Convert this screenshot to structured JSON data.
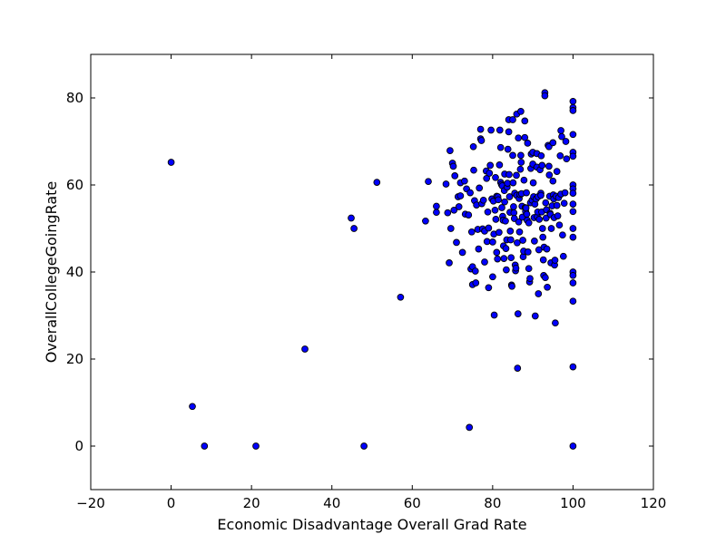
{
  "chart_data": {
    "type": "scatter",
    "title": "",
    "xlabel": "Economic Disadvantage Overall Grad Rate",
    "ylabel": "OverallCollegeGoingRate",
    "xlim": [
      -20,
      120
    ],
    "ylim": [
      -10,
      90
    ],
    "xticks": [
      -20,
      0,
      20,
      40,
      60,
      80,
      100,
      120
    ],
    "yticks": [
      0,
      20,
      40,
      60,
      80
    ],
    "xtick_labels": [
      "−20",
      "0",
      "20",
      "40",
      "60",
      "80",
      "100",
      "120"
    ],
    "ytick_labels": [
      "0",
      "20",
      "40",
      "60",
      "80"
    ],
    "grid": false,
    "marker_color": "#0000ff",
    "marker_edge_color": "#000000",
    "points": [
      [
        0,
        65.2
      ],
      [
        5.3,
        9.1
      ],
      [
        8.3,
        0
      ],
      [
        21.1,
        0
      ],
      [
        33.3,
        22.3
      ],
      [
        44.8,
        52.4
      ],
      [
        45.5,
        50
      ],
      [
        48,
        0
      ],
      [
        51.2,
        60.6
      ],
      [
        57.1,
        34.2
      ],
      [
        63.3,
        51.7
      ],
      [
        64,
        60.8
      ],
      [
        66,
        53.7
      ],
      [
        66,
        55.1
      ],
      [
        68.4,
        60.2
      ],
      [
        68.8,
        53.6
      ],
      [
        69.2,
        42.1
      ],
      [
        69.4,
        67.9
      ],
      [
        69.6,
        50
      ],
      [
        70,
        65
      ],
      [
        70.2,
        64.3
      ],
      [
        70.4,
        54.2
      ],
      [
        70.6,
        62.1
      ],
      [
        71,
        46.8
      ],
      [
        71.4,
        57.3
      ],
      [
        71.6,
        55
      ],
      [
        72,
        57.5
      ],
      [
        72,
        60.5
      ],
      [
        72.5,
        44.5
      ],
      [
        73,
        60.9
      ],
      [
        73.2,
        53.3
      ],
      [
        73.5,
        59.1
      ],
      [
        74,
        53.1
      ],
      [
        74.2,
        4.3
      ],
      [
        74.4,
        58.2
      ],
      [
        74.6,
        40.7
      ],
      [
        74.8,
        49.2
      ],
      [
        75,
        41.2
      ],
      [
        75,
        37.1
      ],
      [
        75.2,
        68.8
      ],
      [
        75.3,
        63.4
      ],
      [
        75.5,
        56.4
      ],
      [
        75.7,
        40.2
      ],
      [
        75.8,
        37.5
      ],
      [
        76,
        55.4
      ],
      [
        76.3,
        49.8
      ],
      [
        76.5,
        45.3
      ],
      [
        76.7,
        59.3
      ],
      [
        77,
        72.8
      ],
      [
        77,
        70.6
      ],
      [
        77.2,
        70.2
      ],
      [
        77.3,
        55.7
      ],
      [
        77.5,
        49.9
      ],
      [
        77.7,
        56.5
      ],
      [
        78,
        49.4
      ],
      [
        78,
        42.3
      ],
      [
        78.4,
        63.2
      ],
      [
        78.5,
        61.5
      ],
      [
        78.6,
        47
      ],
      [
        78.8,
        53.8
      ],
      [
        79,
        36.4
      ],
      [
        79,
        50.1
      ],
      [
        79.2,
        62.7
      ],
      [
        79.4,
        64.5
      ],
      [
        79.6,
        72.6
      ],
      [
        79.8,
        56.8
      ],
      [
        80,
        38.9
      ],
      [
        80,
        46.9
      ],
      [
        80.2,
        56.3
      ],
      [
        80.3,
        48.7
      ],
      [
        80.4,
        30.1
      ],
      [
        80.6,
        54.2
      ],
      [
        80.7,
        61.7
      ],
      [
        80.8,
        52.1
      ],
      [
        81,
        57.4
      ],
      [
        81,
        44.5
      ],
      [
        81.2,
        43
      ],
      [
        81.3,
        57.3
      ],
      [
        81.4,
        56.6
      ],
      [
        81.6,
        49.1
      ],
      [
        81.7,
        64.6
      ],
      [
        81.8,
        72.6
      ],
      [
        82,
        68.6
      ],
      [
        82,
        60.6
      ],
      [
        82.2,
        60.1
      ],
      [
        82.3,
        54.8
      ],
      [
        82.4,
        59.8
      ],
      [
        82.5,
        52.8
      ],
      [
        82.6,
        51.9
      ],
      [
        82.7,
        46
      ],
      [
        82.8,
        43.1
      ],
      [
        82.9,
        58.7
      ],
      [
        83,
        62.5
      ],
      [
        83,
        56.1
      ],
      [
        83.2,
        51.7
      ],
      [
        83.3,
        45.4
      ],
      [
        83.4,
        40.5
      ],
      [
        83.5,
        47.4
      ],
      [
        83.6,
        59.5
      ],
      [
        83.7,
        60.4
      ],
      [
        83.8,
        68.2
      ],
      [
        84,
        75
      ],
      [
        84,
        72.2
      ],
      [
        84.1,
        62.4
      ],
      [
        84.2,
        57.3
      ],
      [
        84.3,
        53.7
      ],
      [
        84.4,
        49.4
      ],
      [
        84.5,
        47.4
      ],
      [
        84.6,
        43.3
      ],
      [
        84.7,
        37
      ],
      [
        84.8,
        36.7
      ],
      [
        85,
        75
      ],
      [
        85,
        66.8
      ],
      [
        85.1,
        60.5
      ],
      [
        85.2,
        55
      ],
      [
        85.3,
        53.6
      ],
      [
        85.4,
        52.3
      ],
      [
        85.5,
        58.1
      ],
      [
        85.6,
        41.6
      ],
      [
        85.7,
        40.3
      ],
      [
        85.8,
        40.9
      ],
      [
        85.9,
        62.2
      ],
      [
        86,
        76.3
      ],
      [
        86,
        57.6
      ],
      [
        86.1,
        46.7
      ],
      [
        86.2,
        17.9
      ],
      [
        86.3,
        30.4
      ],
      [
        86.4,
        70.8
      ],
      [
        86.5,
        51.5
      ],
      [
        86.6,
        56.9
      ],
      [
        86.7,
        49.2
      ],
      [
        86.8,
        57.8
      ],
      [
        86.9,
        63.6
      ],
      [
        87,
        76.9
      ],
      [
        87,
        66.8
      ],
      [
        87.1,
        65.2
      ],
      [
        87.2,
        58
      ],
      [
        87.3,
        55.1
      ],
      [
        87.4,
        52.6
      ],
      [
        87.5,
        47.3
      ],
      [
        87.6,
        43.5
      ],
      [
        87.7,
        44.8
      ],
      [
        87.8,
        61.1
      ],
      [
        88,
        74.7
      ],
      [
        88,
        70.9
      ],
      [
        88.1,
        54.8
      ],
      [
        88.2,
        53.9
      ],
      [
        88.3,
        54.7
      ],
      [
        88.4,
        58.2
      ],
      [
        88.5,
        53.3
      ],
      [
        88.6,
        51.9
      ],
      [
        88.7,
        69.6
      ],
      [
        88.8,
        44.6
      ],
      [
        89,
        51.3
      ],
      [
        89,
        40.8
      ],
      [
        89.2,
        37.7
      ],
      [
        89.3,
        38.5
      ],
      [
        89.4,
        55.9
      ],
      [
        89.5,
        63.8
      ],
      [
        89.6,
        67.1
      ],
      [
        89.8,
        56.5
      ],
      [
        90,
        67.5
      ],
      [
        90,
        64.8
      ],
      [
        90.1,
        60.5
      ],
      [
        90.2,
        57.3
      ],
      [
        90.3,
        52.5
      ],
      [
        90.4,
        47.1
      ],
      [
        90.5,
        55.6
      ],
      [
        90.6,
        29.9
      ],
      [
        90.8,
        56.8
      ],
      [
        91,
        67.2
      ],
      [
        91,
        64.1
      ],
      [
        91.1,
        52.7
      ],
      [
        91.2,
        53.8
      ],
      [
        91.3,
        57.3
      ],
      [
        91.4,
        35
      ],
      [
        91.5,
        45.1
      ],
      [
        91.6,
        52.1
      ],
      [
        91.8,
        63.5
      ],
      [
        92,
        58.1
      ],
      [
        92,
        57.6
      ],
      [
        92.1,
        66.7
      ],
      [
        92.2,
        53.8
      ],
      [
        92.3,
        64.5
      ],
      [
        92.4,
        50
      ],
      [
        92.5,
        48
      ],
      [
        92.6,
        42.8
      ],
      [
        92.7,
        39.2
      ],
      [
        92.8,
        45.7
      ],
      [
        93,
        81.2
      ],
      [
        93,
        80.5
      ],
      [
        93.1,
        38.7
      ],
      [
        93.2,
        55.9
      ],
      [
        93.3,
        52.4
      ],
      [
        93.4,
        54.3
      ],
      [
        93.5,
        45.3
      ],
      [
        93.6,
        36.5
      ],
      [
        93.8,
        69.1
      ],
      [
        94,
        68.8
      ],
      [
        94,
        64.3
      ],
      [
        94.1,
        62.3
      ],
      [
        94.2,
        57.4
      ],
      [
        94.3,
        53.5
      ],
      [
        94.4,
        53.2
      ],
      [
        94.5,
        42.1
      ],
      [
        94.6,
        50
      ],
      [
        94.8,
        55.2
      ],
      [
        95,
        69.7
      ],
      [
        95,
        60.9
      ],
      [
        95.1,
        57.7
      ],
      [
        95.2,
        56.8
      ],
      [
        95.3,
        52.5
      ],
      [
        95.4,
        41.6
      ],
      [
        95.5,
        42.7
      ],
      [
        95.6,
        28.3
      ],
      [
        95.8,
        57.4
      ],
      [
        96,
        63.1
      ],
      [
        96,
        55.3
      ],
      [
        96.2,
        52.9
      ],
      [
        96.4,
        57.1
      ],
      [
        96.6,
        50.8
      ],
      [
        96.8,
        66.7
      ],
      [
        97,
        72.5
      ],
      [
        97,
        57.9
      ],
      [
        97.2,
        71.1
      ],
      [
        97.4,
        48.5
      ],
      [
        97.6,
        43.6
      ],
      [
        97.8,
        55.8
      ],
      [
        98,
        58.2
      ],
      [
        98.2,
        70
      ],
      [
        98.4,
        66
      ],
      [
        100,
        79.2
      ],
      [
        100,
        77.8
      ],
      [
        100,
        77.1
      ],
      [
        100,
        71.6
      ],
      [
        100,
        67.5
      ],
      [
        100,
        66.6
      ],
      [
        100,
        60
      ],
      [
        100,
        59.1
      ],
      [
        100,
        58.1
      ],
      [
        100,
        55.6
      ],
      [
        100,
        53.9
      ],
      [
        100,
        50
      ],
      [
        100,
        48
      ],
      [
        100,
        40
      ],
      [
        100,
        39.2
      ],
      [
        100,
        37.5
      ],
      [
        100,
        33.3
      ],
      [
        100,
        18.2
      ],
      [
        100,
        0
      ]
    ]
  }
}
